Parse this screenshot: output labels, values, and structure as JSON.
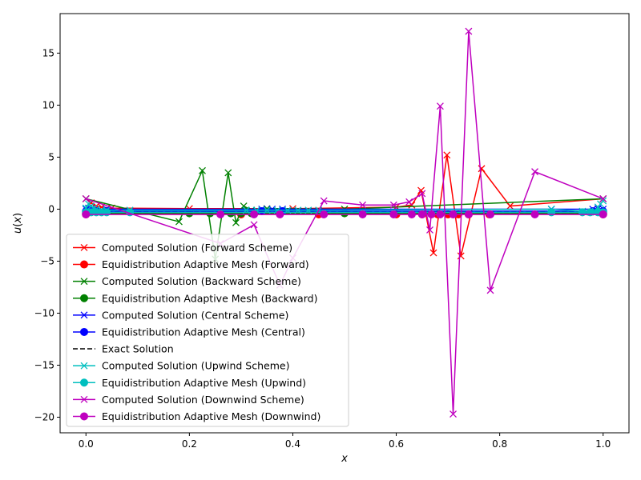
{
  "chart_data": {
    "type": "line",
    "title": "",
    "xlabel": "x",
    "ylabel": "u(x)",
    "xlim": [
      -0.05,
      1.05
    ],
    "ylim": [
      -21.5,
      18.8
    ],
    "xticks": [
      0.0,
      0.2,
      0.4,
      0.6,
      0.8,
      1.0
    ],
    "xtick_labels": [
      "0.0",
      "0.2",
      "0.4",
      "0.6",
      "0.8",
      "1.0"
    ],
    "yticks": [
      -20,
      -15,
      -10,
      -5,
      0,
      5,
      10,
      15
    ],
    "ytick_labels": [
      "−20",
      "−15",
      "−10",
      "−5",
      "0",
      "5",
      "10",
      "15"
    ],
    "grid": false,
    "legend_position": "lower-left",
    "series": [
      {
        "name": "Computed Solution (Forward Scheme)",
        "color": "#ff0000",
        "marker": "x",
        "dash": "solid",
        "x": [
          0.0,
          0.01,
          0.02,
          0.03,
          0.05,
          0.2,
          0.4,
          0.6,
          0.63,
          0.648,
          0.672,
          0.698,
          0.725,
          0.765,
          0.82,
          1.0
        ],
        "y": [
          1.0,
          0.6,
          0.3,
          0.2,
          0.1,
          0.05,
          0.05,
          0.2,
          0.4,
          1.8,
          -4.2,
          5.2,
          -4.5,
          3.9,
          0.3,
          1.0
        ]
      },
      {
        "name": "Equidistribution Adaptive Mesh (Forward)",
        "color": "#ff0000",
        "marker": "o",
        "dash": "solid",
        "x": [
          0.0,
          0.3,
          0.45,
          0.6,
          0.65,
          0.68,
          0.7,
          0.72,
          0.74,
          0.78,
          1.0
        ],
        "y": [
          -0.5,
          -0.5,
          -0.5,
          -0.5,
          -0.5,
          -0.5,
          -0.5,
          -0.5,
          -0.5,
          -0.5,
          -0.5
        ]
      },
      {
        "name": "Computed Solution (Backward Scheme)",
        "color": "#008000",
        "marker": "x",
        "dash": "solid",
        "x": [
          0.0,
          0.18,
          0.225,
          0.25,
          0.275,
          0.29,
          0.305,
          0.32,
          0.35,
          0.5,
          1.0
        ],
        "y": [
          1.0,
          -1.2,
          3.7,
          -4.8,
          3.5,
          -1.3,
          0.3,
          -0.1,
          0.05,
          0.0,
          1.0
        ]
      },
      {
        "name": "Equidistribution Adaptive Mesh (Backward)",
        "color": "#008000",
        "marker": "o",
        "dash": "solid",
        "x": [
          0.0,
          0.2,
          0.24,
          0.26,
          0.28,
          0.3,
          0.32,
          0.5,
          1.0
        ],
        "y": [
          -0.4,
          -0.4,
          -0.4,
          -0.4,
          -0.4,
          -0.4,
          -0.4,
          -0.4,
          -0.4
        ]
      },
      {
        "name": "Computed Solution (Central Scheme)",
        "color": "#0000ff",
        "marker": "x",
        "dash": "solid",
        "x": [
          0.0,
          0.005,
          0.01,
          0.02,
          0.04,
          0.34,
          0.36,
          0.38,
          0.9,
          0.98,
          0.99,
          1.0
        ],
        "y": [
          0.0,
          0.1,
          0.05,
          0.0,
          0.0,
          0.0,
          0.0,
          0.0,
          0.0,
          0.0,
          0.05,
          0.0
        ]
      },
      {
        "name": "Equidistribution Adaptive Mesh (Central)",
        "color": "#0000ff",
        "marker": "o",
        "dash": "solid",
        "x": [
          0.0,
          0.01,
          0.02,
          0.04,
          0.34,
          0.38,
          0.98,
          0.99,
          1.0
        ],
        "y": [
          -0.2,
          -0.2,
          -0.2,
          -0.2,
          -0.2,
          -0.2,
          -0.2,
          -0.2,
          -0.2
        ]
      },
      {
        "name": "Exact Solution",
        "color": "#000000",
        "marker": "none",
        "dash": "dashed",
        "x": [
          0.0,
          1.0
        ],
        "y": [
          -0.3,
          -0.3
        ]
      },
      {
        "name": "Computed Solution (Upwind Scheme)",
        "color": "#00bfbf",
        "marker": "x",
        "dash": "solid",
        "x": [
          0.0,
          0.005,
          0.01,
          0.015,
          0.02,
          0.03,
          0.04,
          0.085,
          0.31,
          0.33,
          0.35,
          0.37,
          0.39,
          0.41,
          0.43,
          0.45,
          0.9,
          0.96,
          0.975,
          0.985,
          0.99,
          0.995,
          1.0
        ],
        "y": [
          0.1,
          0.5,
          0.3,
          0.1,
          0.0,
          -0.1,
          -0.1,
          -0.1,
          -0.1,
          -0.1,
          -0.1,
          -0.1,
          -0.1,
          -0.1,
          -0.1,
          -0.1,
          0.0,
          -0.2,
          -0.3,
          -0.2,
          0.2,
          0.5,
          0.8
        ]
      },
      {
        "name": "Equidistribution Adaptive Mesh (Upwind)",
        "color": "#00bfbf",
        "marker": "o",
        "dash": "solid",
        "x": [
          0.0,
          0.01,
          0.02,
          0.03,
          0.04,
          0.085,
          0.9,
          0.96,
          0.975,
          0.99,
          1.0
        ],
        "y": [
          -0.3,
          -0.3,
          -0.3,
          -0.3,
          -0.3,
          -0.3,
          -0.3,
          -0.3,
          -0.3,
          -0.3,
          -0.3
        ]
      },
      {
        "name": "Computed Solution (Downwind Scheme)",
        "color": "#bf00bf",
        "marker": "x",
        "dash": "solid",
        "x": [
          0.0,
          0.26,
          0.325,
          0.375,
          0.4,
          0.46,
          0.535,
          0.595,
          0.625,
          0.65,
          0.665,
          0.685,
          0.71,
          0.74,
          0.782,
          0.868,
          1.0
        ],
        "y": [
          1.0,
          -3.3,
          -1.5,
          -7.3,
          -4.7,
          0.8,
          0.4,
          0.4,
          0.7,
          1.5,
          -2.0,
          9.9,
          -19.7,
          17.1,
          -7.8,
          3.6,
          1.0
        ]
      },
      {
        "name": "Equidistribution Adaptive Mesh (Downwind)",
        "color": "#bf00bf",
        "marker": "o",
        "dash": "solid",
        "x": [
          0.0,
          0.26,
          0.325,
          0.375,
          0.46,
          0.535,
          0.595,
          0.63,
          0.65,
          0.668,
          0.685,
          0.71,
          0.74,
          0.782,
          0.868,
          1.0
        ],
        "y": [
          -0.5,
          -0.5,
          -0.5,
          -0.5,
          -0.5,
          -0.5,
          -0.5,
          -0.5,
          -0.5,
          -0.5,
          -0.5,
          -0.5,
          -0.5,
          -0.5,
          -0.5,
          -0.5
        ]
      }
    ]
  }
}
